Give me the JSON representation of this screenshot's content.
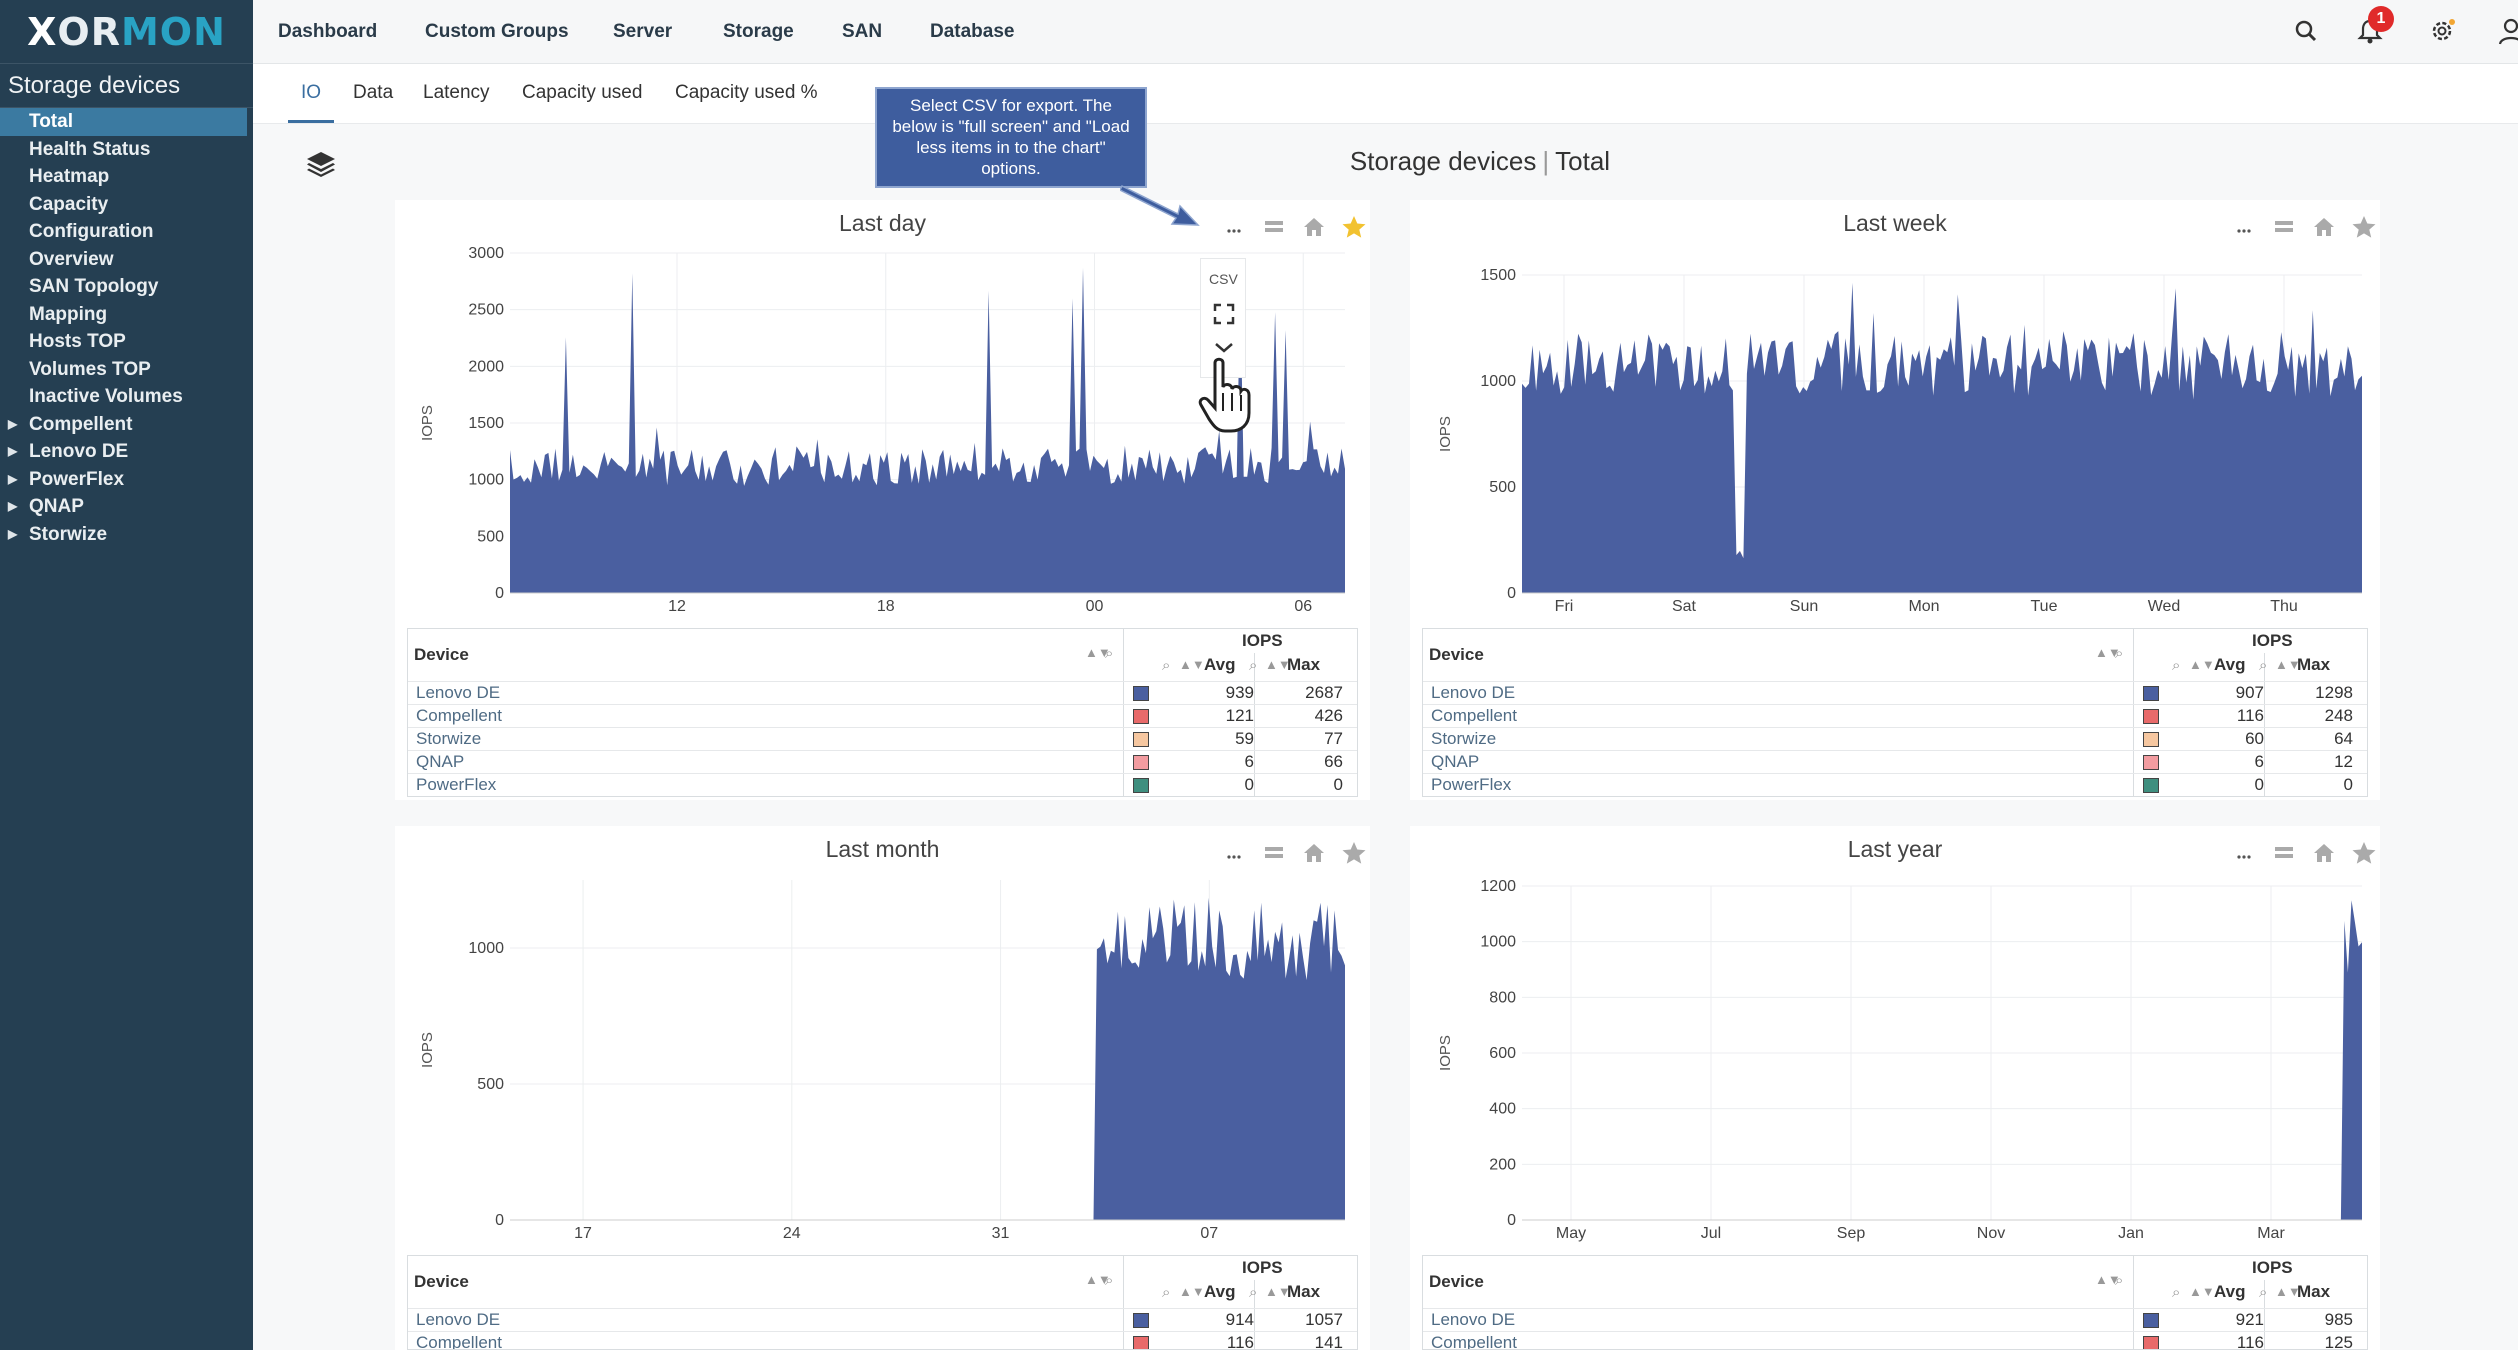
{
  "app": {
    "logo": {
      "x": "X",
      "rest": "OR",
      "mon": "MON"
    }
  },
  "sidebar": {
    "title": "Storage devices",
    "items": [
      {
        "label": "Total",
        "active": true,
        "caret": false
      },
      {
        "label": "Health Status",
        "caret": false
      },
      {
        "label": "Heatmap",
        "caret": false
      },
      {
        "label": "Capacity",
        "caret": false
      },
      {
        "label": "Configuration",
        "caret": false
      },
      {
        "label": "Overview",
        "caret": false
      },
      {
        "label": "SAN Topology",
        "caret": false
      },
      {
        "label": "Mapping",
        "caret": false
      },
      {
        "label": "Hosts TOP",
        "caret": false
      },
      {
        "label": "Volumes TOP",
        "caret": false
      },
      {
        "label": "Inactive Volumes",
        "caret": false
      },
      {
        "label": "Compellent",
        "caret": true
      },
      {
        "label": "Lenovo DE",
        "caret": true
      },
      {
        "label": "PowerFlex",
        "caret": true
      },
      {
        "label": "QNAP",
        "caret": true
      },
      {
        "label": "Storwize",
        "caret": true
      }
    ]
  },
  "topbar": {
    "menu": [
      "Dashboard",
      "Custom Groups",
      "Server",
      "Storage",
      "SAN",
      "Database"
    ],
    "notification_count": "1",
    "icons": [
      "search-icon",
      "bell-icon",
      "gear-icon",
      "user-icon"
    ]
  },
  "tabs": [
    "IO",
    "Data",
    "Latency",
    "Capacity used",
    "Capacity used %"
  ],
  "page": {
    "title": "Storage devices",
    "separator": "|",
    "subtitle": "Total"
  },
  "callout": {
    "text": "Select CSV for export. The below is \"full screen\" and \"Load less items in to the chart\" options."
  },
  "menu_popup": {
    "csv_label": "CSV"
  },
  "colors": {
    "lenovo": "#4a5fa0",
    "compellent": "#e86a6a",
    "storwize": "#f6c7a0",
    "qnap": "#f29ca0",
    "powerflex": "#3f8f7f",
    "accent": "#3a6ea0",
    "sidebar": "#253f52"
  },
  "table_headers": {
    "device": "Device",
    "iops": "IOPS",
    "avg": "Avg",
    "max": "Max"
  },
  "panels": [
    {
      "title": "Last day",
      "ylabel": "IOPS",
      "yticks": [
        "3000",
        "2500",
        "2000",
        "1500",
        "1000",
        "500",
        "0"
      ],
      "xticks": [
        "12",
        "18",
        "00",
        "06"
      ],
      "starred": true,
      "rows": [
        {
          "device": "Lenovo DE",
          "avg": "939",
          "max": "2687"
        },
        {
          "device": "Compellent",
          "avg": "121",
          "max": "426"
        },
        {
          "device": "Storwize",
          "avg": "59",
          "max": "77"
        },
        {
          "device": "QNAP",
          "avg": "6",
          "max": "66"
        },
        {
          "device": "PowerFlex",
          "avg": "0",
          "max": "0"
        }
      ]
    },
    {
      "title": "Last week",
      "ylabel": "IOPS",
      "yticks": [
        "1500",
        "1000",
        "500",
        "0"
      ],
      "xticks": [
        "Fri",
        "Sat",
        "Sun",
        "Mon",
        "Tue",
        "Wed",
        "Thu"
      ],
      "starred": false,
      "rows": [
        {
          "device": "Lenovo DE",
          "avg": "907",
          "max": "1298"
        },
        {
          "device": "Compellent",
          "avg": "116",
          "max": "248"
        },
        {
          "device": "Storwize",
          "avg": "60",
          "max": "64"
        },
        {
          "device": "QNAP",
          "avg": "6",
          "max": "12"
        },
        {
          "device": "PowerFlex",
          "avg": "0",
          "max": "0"
        }
      ]
    },
    {
      "title": "Last month",
      "ylabel": "IOPS",
      "yticks": [
        "1000",
        "500",
        "0"
      ],
      "xticks": [
        "17",
        "24",
        "31",
        "07"
      ],
      "starred": false,
      "rows": [
        {
          "device": "Lenovo DE",
          "avg": "914",
          "max": "1057"
        },
        {
          "device": "Compellent",
          "avg": "116",
          "max": "141"
        }
      ]
    },
    {
      "title": "Last year",
      "ylabel": "IOPS",
      "yticks": [
        "1200",
        "1000",
        "800",
        "600",
        "400",
        "200",
        "0"
      ],
      "xticks": [
        "May",
        "Jul",
        "Sep",
        "Nov",
        "Jan",
        "Mar"
      ],
      "starred": false,
      "rows": [
        {
          "device": "Lenovo DE",
          "avg": "921",
          "max": "985"
        },
        {
          "device": "Compellent",
          "avg": "116",
          "max": "125"
        }
      ]
    }
  ],
  "chart_data": [
    {
      "type": "area",
      "title": "Last day",
      "ylabel": "IOPS",
      "ylim": [
        0,
        3000
      ],
      "x": [
        "12",
        "18",
        "00",
        "06"
      ],
      "series": [
        {
          "name": "Lenovo DE",
          "avg": 939,
          "max": 2687
        },
        {
          "name": "Compellent",
          "avg": 121,
          "max": 426
        },
        {
          "name": "Storwize",
          "avg": 59,
          "max": 77
        },
        {
          "name": "QNAP",
          "avg": 6,
          "max": 66
        },
        {
          "name": "PowerFlex",
          "avg": 0,
          "max": 0
        }
      ]
    },
    {
      "type": "area",
      "title": "Last week",
      "ylabel": "IOPS",
      "ylim": [
        0,
        1500
      ],
      "x": [
        "Fri",
        "Sat",
        "Sun",
        "Mon",
        "Tue",
        "Wed",
        "Thu"
      ],
      "series": [
        {
          "name": "Lenovo DE",
          "avg": 907,
          "max": 1298
        },
        {
          "name": "Compellent",
          "avg": 116,
          "max": 248
        },
        {
          "name": "Storwize",
          "avg": 60,
          "max": 64
        },
        {
          "name": "QNAP",
          "avg": 6,
          "max": 12
        },
        {
          "name": "PowerFlex",
          "avg": 0,
          "max": 0
        }
      ]
    },
    {
      "type": "area",
      "title": "Last month",
      "ylabel": "IOPS",
      "ylim": [
        0,
        1250
      ],
      "x": [
        "17",
        "24",
        "31",
        "07"
      ],
      "series": [
        {
          "name": "Lenovo DE",
          "avg": 914,
          "max": 1057
        },
        {
          "name": "Compellent",
          "avg": 116,
          "max": 141
        }
      ]
    },
    {
      "type": "area",
      "title": "Last year",
      "ylabel": "IOPS",
      "ylim": [
        0,
        1200
      ],
      "x": [
        "May",
        "Jul",
        "Sep",
        "Nov",
        "Jan",
        "Mar"
      ],
      "series": [
        {
          "name": "Lenovo DE",
          "avg": 921,
          "max": 985
        },
        {
          "name": "Compellent",
          "avg": 116,
          "max": 125
        }
      ]
    }
  ]
}
